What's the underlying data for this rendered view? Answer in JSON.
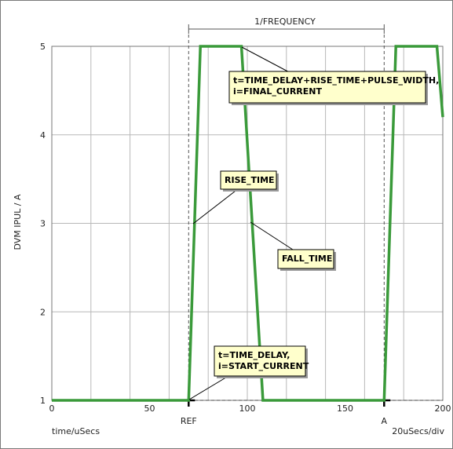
{
  "chart_data": {
    "type": "line",
    "xlabel": "time/uSecs",
    "ylabel": "DVM IPUL / A",
    "x_scale_label": "20uSecs/div",
    "xlim": [
      0,
      200
    ],
    "ylim": [
      1,
      5
    ],
    "x_ticks": [
      "0",
      "50",
      "100",
      "150",
      "200"
    ],
    "y_ticks": [
      "1",
      "2",
      "3",
      "4",
      "5"
    ],
    "grid": true,
    "series": [
      {
        "color": "#3a9a3a",
        "x": [
          0,
          70,
          76,
          97,
          108,
          170,
          176,
          197,
          200
        ],
        "y": [
          1,
          1,
          5,
          5,
          1,
          1,
          5,
          5,
          4.2
        ]
      }
    ],
    "markers": [
      {
        "label": "REF",
        "x": 70
      },
      {
        "label": "A",
        "x": 170
      }
    ],
    "period_label": "1/FREQUENCY",
    "annotations": [
      {
        "id": "pulse",
        "lines": [
          "t=TIME_DELAY+RISE_TIME+PULSE_WIDTH,",
          "i=FINAL_CURRENT"
        ],
        "target": {
          "x": 97,
          "y": 5
        }
      },
      {
        "id": "rise",
        "lines": [
          "RISE_TIME"
        ],
        "target": {
          "x": 72,
          "y": 3
        }
      },
      {
        "id": "fall",
        "lines": [
          "FALL_TIME"
        ],
        "target": {
          "x": 103,
          "y": 3
        }
      },
      {
        "id": "delay",
        "lines": [
          "t=TIME_DELAY,",
          "i=START_CURRENT"
        ],
        "target": {
          "x": 70,
          "y": 1
        }
      }
    ]
  },
  "colors": {
    "trace": "#3a9a3a",
    "note_bg": "#ffffcc",
    "grid": "#b8b8b8"
  }
}
